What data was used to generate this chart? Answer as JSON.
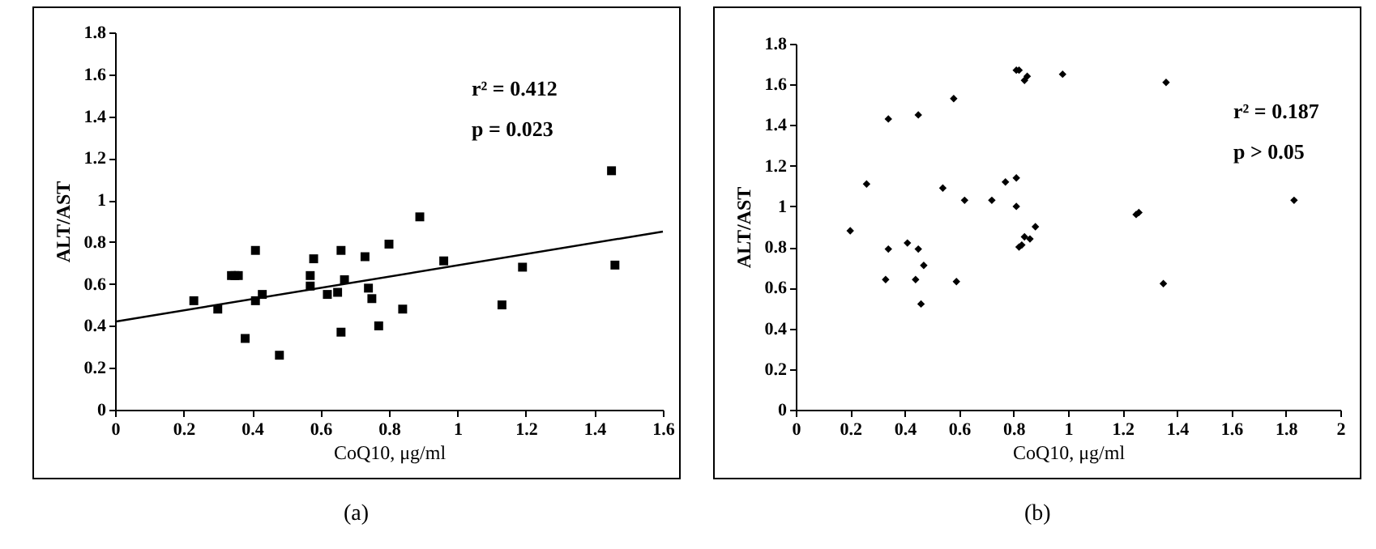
{
  "chart_data": [
    {
      "type": "scatter",
      "xlabel": "CoQ10, μg/ml",
      "ylabel": "ALT/AST",
      "xlim": [
        0,
        1.6
      ],
      "xticks": [
        0,
        0.2,
        0.4,
        0.6,
        0.8,
        1,
        1.2,
        1.4,
        1.6
      ],
      "ylim": [
        0,
        1.8
      ],
      "yticks": [
        0,
        0.2,
        0.4,
        0.6,
        0.8,
        1,
        1.2,
        1.4,
        1.6,
        1.8
      ],
      "grid": false,
      "marker": "square",
      "annotations": [
        "r² = 0.412",
        "p = 0.023",
        "(a)"
      ],
      "series": [
        {
          "type": "scatter",
          "color": "#000000",
          "x": [
            0.23,
            0.3,
            0.34,
            0.35,
            0.36,
            0.38,
            0.41,
            0.41,
            0.43,
            0.48,
            0.57,
            0.57,
            0.58,
            0.62,
            0.65,
            0.66,
            0.66,
            0.67,
            0.73,
            0.74,
            0.75,
            0.77,
            0.8,
            0.84,
            0.89,
            0.96,
            1.13,
            1.19,
            1.45,
            1.46
          ],
          "values": [
            0.52,
            0.48,
            0.64,
            0.64,
            0.64,
            0.34,
            0.76,
            0.52,
            0.55,
            0.26,
            0.64,
            0.59,
            0.72,
            0.55,
            0.56,
            0.76,
            0.37,
            0.62,
            0.73,
            0.58,
            0.53,
            0.4,
            0.79,
            0.48,
            0.92,
            0.71,
            0.5,
            0.68,
            1.14,
            0.69
          ]
        },
        {
          "type": "line",
          "color": "#000000",
          "marker": "none",
          "x": [
            0,
            1.6
          ],
          "values": [
            0.42,
            0.85
          ]
        }
      ]
    },
    {
      "type": "scatter",
      "xlabel": "CoQ10, μg/ml",
      "ylabel": "ALT/AST",
      "xlim": [
        0,
        2
      ],
      "xticks": [
        0,
        0.2,
        0.4,
        0.6,
        0.8,
        1,
        1.2,
        1.4,
        1.6,
        1.8,
        2
      ],
      "ylim": [
        0,
        1.8
      ],
      "yticks": [
        0,
        0.2,
        0.4,
        0.6,
        0.8,
        1,
        1.2,
        1.4,
        1.6,
        1.8
      ],
      "grid": false,
      "marker": "diamond",
      "annotations": [
        "r² = 0.187",
        "p > 0.05",
        "(b)"
      ],
      "series": [
        {
          "type": "scatter",
          "color": "#000000",
          "x": [
            0.2,
            0.26,
            0.33,
            0.34,
            0.34,
            0.41,
            0.44,
            0.45,
            0.45,
            0.46,
            0.47,
            0.54,
            0.58,
            0.59,
            0.62,
            0.72,
            0.77,
            0.81,
            0.81,
            0.81,
            0.82,
            0.82,
            0.83,
            0.84,
            0.84,
            0.85,
            0.86,
            0.88,
            0.98,
            1.25,
            1.26,
            1.35,
            1.36,
            1.83
          ],
          "values": [
            0.88,
            1.11,
            0.64,
            0.79,
            1.43,
            0.82,
            0.64,
            0.79,
            1.45,
            0.52,
            0.71,
            1.09,
            1.53,
            0.63,
            1.03,
            1.03,
            1.12,
            1.14,
            1.0,
            1.67,
            1.67,
            0.8,
            0.81,
            1.62,
            0.85,
            1.64,
            0.84,
            0.9,
            1.65,
            0.96,
            0.97,
            0.62,
            1.61,
            1.03
          ]
        }
      ]
    }
  ]
}
